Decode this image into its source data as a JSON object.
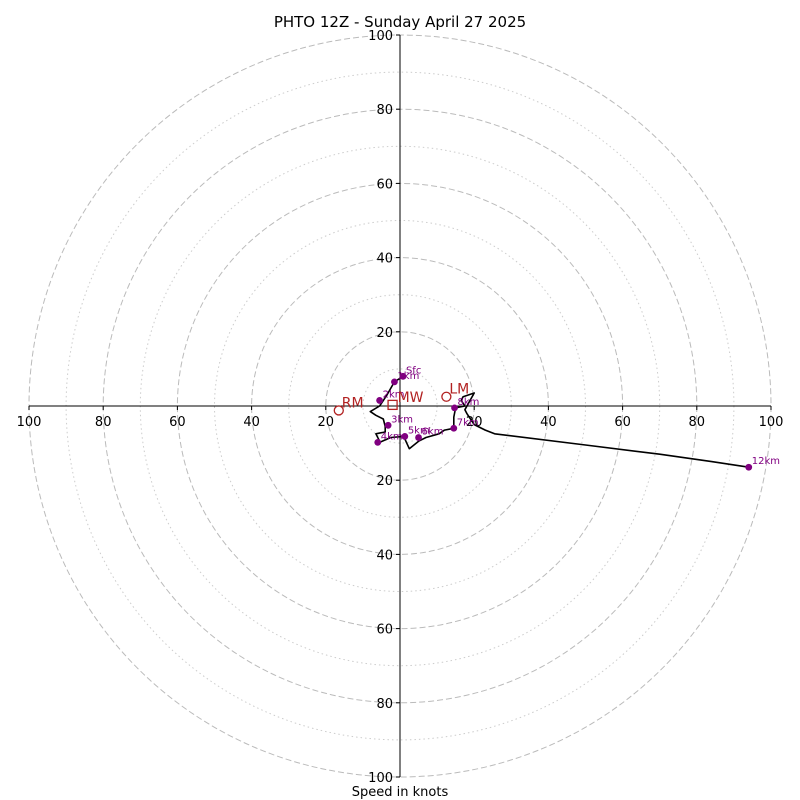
{
  "chart_data": {
    "type": "line",
    "title": "PHTO 12Z - Sunday April 27 2025",
    "xlabel": "Speed in knots",
    "ylabel": "",
    "xlim": [
      -100,
      100
    ],
    "ylim": [
      -100,
      100
    ],
    "rings": {
      "major": [
        20,
        40,
        60,
        80,
        100
      ],
      "minor": [
        10,
        30,
        50,
        70,
        90
      ]
    },
    "tick_labels": {
      "left": [
        "100",
        "80",
        "60",
        "40",
        "20"
      ],
      "right": [
        "20",
        "40",
        "60",
        "80",
        "100"
      ],
      "top": [
        "20",
        "40",
        "60",
        "80",
        "100"
      ],
      "bottom": [
        "20",
        "40",
        "60",
        "80",
        "100"
      ]
    },
    "colors": {
      "hodograph": "#000000",
      "height_markers": "#800080",
      "storm_motion": "#b22222",
      "major_ring": "#bbbbbb",
      "minor_ring": "#cccccc"
    },
    "hodograph": {
      "u": [
        0.8,
        -1.5,
        -3.5,
        -5.5,
        -8,
        -6.5,
        -4.5,
        -4,
        -4,
        -6.5,
        -5.5,
        -5.5,
        -2.5,
        1,
        2.5,
        5,
        7,
        10.5,
        12,
        14.5,
        14.5,
        15,
        17.5,
        16.5,
        17,
        20,
        20,
        17.5,
        18,
        20,
        23,
        25.5,
        50,
        70,
        84,
        94
      ],
      "v": [
        8,
        6.5,
        3,
        0,
        -1.5,
        -2.5,
        -3.5,
        -5.5,
        -7,
        -7.5,
        -9.5,
        -9.8,
        -8.5,
        -8.2,
        -11.5,
        -9.5,
        -8.5,
        -7.5,
        -6.5,
        -6,
        -3,
        -0.5,
        0,
        1.5,
        2.5,
        3.5,
        3.5,
        -1,
        -2,
        -5,
        -6.5,
        -7.5,
        -10.5,
        -13,
        -15,
        -16.5
      ]
    },
    "height_markers": [
      {
        "label": "Sfc",
        "u": 0.8,
        "v": 8
      },
      {
        "label": "1km",
        "u": -1.5,
        "v": 6.5
      },
      {
        "label": "2km",
        "u": -5.5,
        "v": 1.5
      },
      {
        "label": "3km",
        "u": -3.2,
        "v": -5.2
      },
      {
        "label": "4km",
        "u": -6,
        "v": -9.8
      },
      {
        "label": "5km",
        "u": 1.3,
        "v": -8.2
      },
      {
        "label": "6km",
        "u": 5,
        "v": -8.5
      },
      {
        "label": "7km",
        "u": 14.5,
        "v": -6
      },
      {
        "label": "8km",
        "u": 14.7,
        "v": -0.5
      },
      {
        "label": "12km",
        "u": 94,
        "v": -16.5
      }
    ],
    "storm_motion": [
      {
        "label": "RM",
        "u": -16.5,
        "v": -1.2,
        "marker": "circle"
      },
      {
        "label": "LM",
        "u": 12.5,
        "v": 2.5,
        "marker": "circle"
      },
      {
        "label": "MW",
        "u": -2,
        "v": 0.3,
        "marker": "square"
      }
    ]
  }
}
